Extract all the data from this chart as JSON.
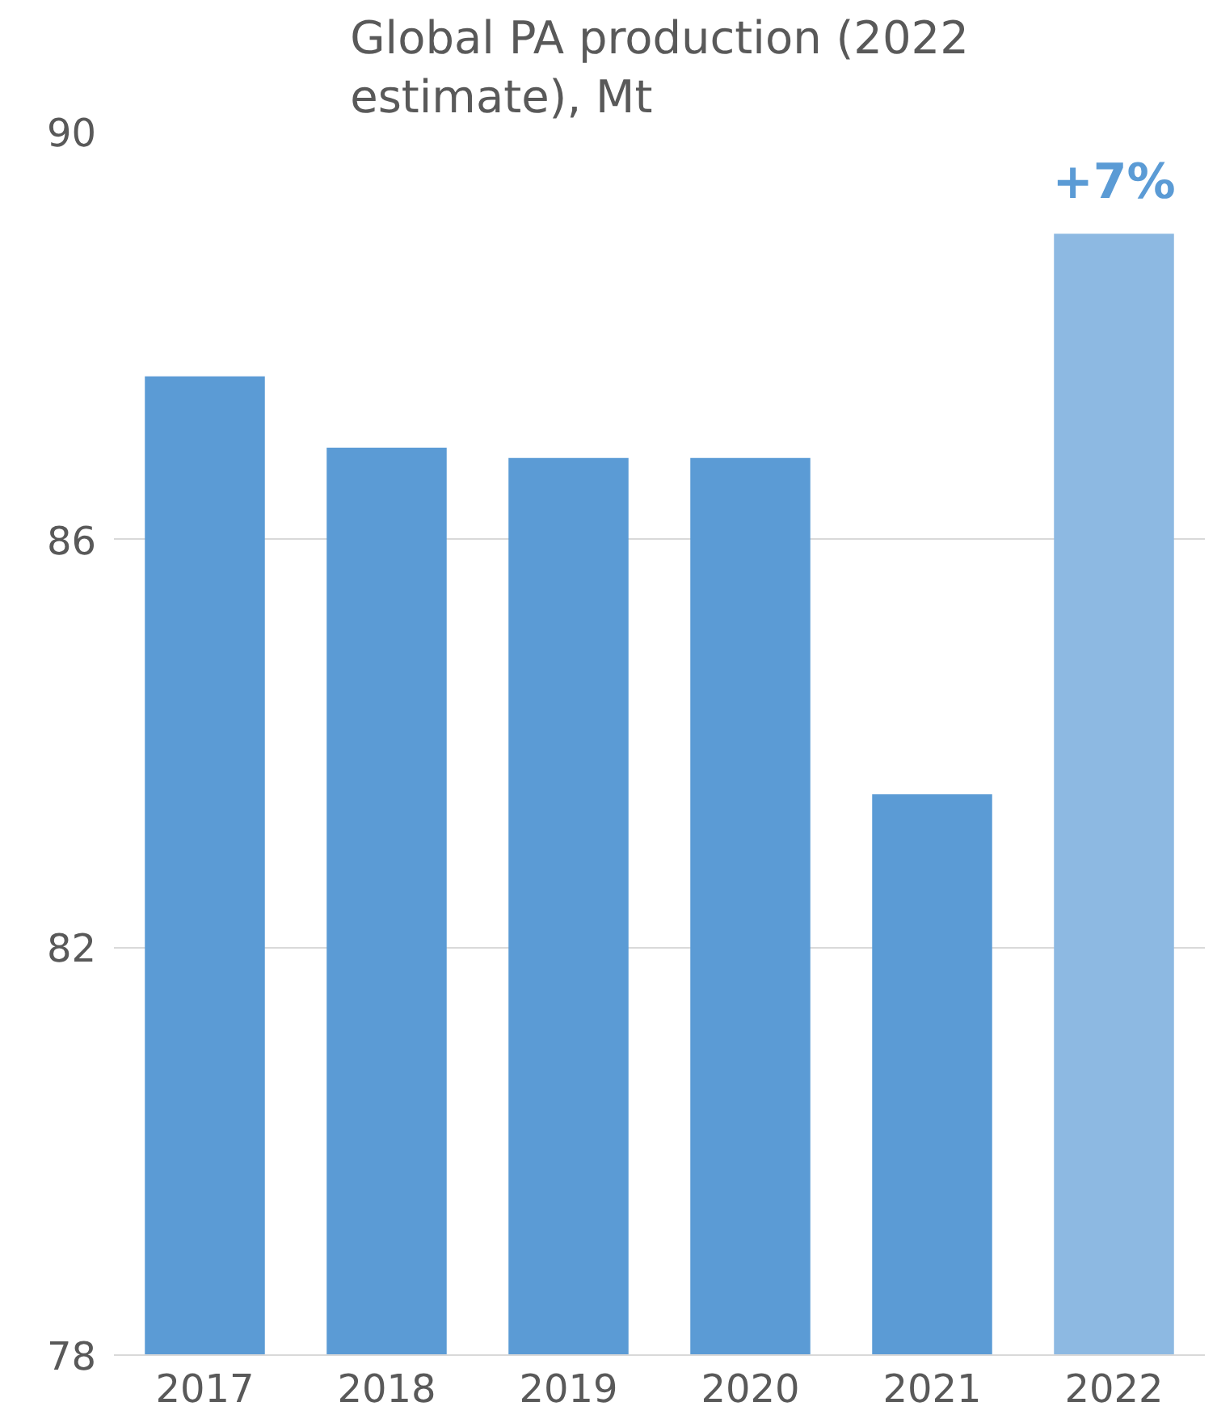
{
  "chart_data": {
    "type": "bar",
    "title": "Global PA production (2022 estimate), Mt",
    "categories": [
      "2017",
      "2018",
      "2019",
      "2020",
      "2021",
      "2022"
    ],
    "values": [
      87.6,
      86.9,
      86.8,
      86.8,
      83.5,
      89.0
    ],
    "colors": [
      "#5b9bd5",
      "#5b9bd5",
      "#5b9bd5",
      "#5b9bd5",
      "#5b9bd5",
      "#8db9e2"
    ],
    "ylim": [
      78,
      90
    ],
    "yticks": [
      78,
      82,
      86,
      90
    ],
    "grid": "y",
    "annotations": [
      {
        "text": "+7%",
        "x": "2022",
        "y": 89.0
      }
    ]
  }
}
